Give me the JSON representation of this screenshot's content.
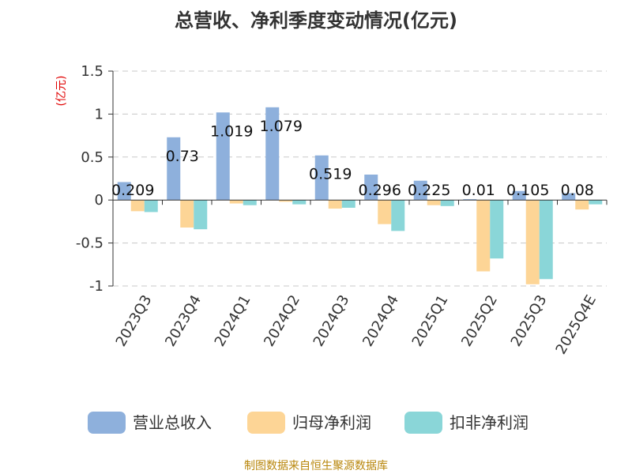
{
  "chart_data": {
    "type": "bar",
    "title": "总营收、净利季度变动情况(亿元)",
    "unit_label": "(亿元)",
    "categories": [
      "2023Q3",
      "2023Q4",
      "2024Q1",
      "2024Q2",
      "2024Q3",
      "2024Q4",
      "2025Q1",
      "2025Q2",
      "2025Q3",
      "2025Q4E"
    ],
    "series": [
      {
        "name": "营业总收入",
        "color": "#8eb0dc",
        "values": [
          0.209,
          0.73,
          1.019,
          1.079,
          0.519,
          0.296,
          0.225,
          0.01,
          0.105,
          0.08
        ]
      },
      {
        "name": "归母净利润",
        "color": "#fdd596",
        "values": [
          -0.13,
          -0.32,
          -0.04,
          -0.02,
          -0.1,
          -0.28,
          -0.06,
          -0.83,
          -0.98,
          -0.11
        ]
      },
      {
        "name": "扣非净利润",
        "color": "#8ad6d8",
        "values": [
          -0.14,
          -0.34,
          -0.06,
          -0.05,
          -0.09,
          -0.36,
          -0.07,
          -0.68,
          -0.92,
          -0.05
        ]
      }
    ],
    "data_labels": [
      "0.209",
      "0.73",
      "1.019",
      "1.079",
      "0.519",
      "0.296",
      "0.225",
      "0.01",
      "0.105",
      "0.08"
    ],
    "yticks": [
      "1.5",
      "1",
      "0.5",
      "0",
      "-0.5",
      "-1"
    ],
    "ylim": [
      -1,
      1.5
    ],
    "grid": true,
    "legend_position": "bottom"
  },
  "source": "制图数据来自恒生聚源数据库"
}
